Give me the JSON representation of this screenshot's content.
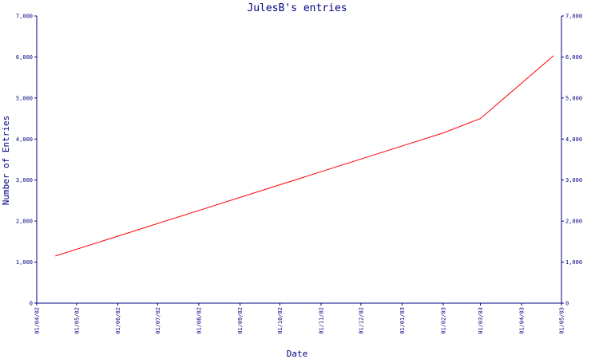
{
  "chart_data": {
    "type": "line",
    "title": "JulesB's entries",
    "xlabel": "Date",
    "ylabel": "Number of Entries",
    "x_ticks": [
      "01/04/02",
      "01/05/02",
      "01/06/02",
      "01/07/02",
      "01/08/02",
      "01/09/02",
      "01/10/02",
      "01/11/02",
      "01/12/02",
      "01/01/03",
      "01/02/03",
      "01/03/03",
      "01/04/03",
      "01/05/03"
    ],
    "y_ticks": [
      "0",
      "1,000",
      "2,000",
      "3,000",
      "4,000",
      "5,000",
      "6,000",
      "7,000"
    ],
    "ylim": [
      0,
      7000
    ],
    "xlim": [
      "01/04/02",
      "01/05/03"
    ],
    "grid": false,
    "series": [
      {
        "color": "#ff0000",
        "points": [
          {
            "x": "2002-04-15",
            "y": 1150
          },
          {
            "x": "2003-02-01",
            "y": 4150
          },
          {
            "x": "2003-03-01",
            "y": 4500
          },
          {
            "x": "2003-04-25",
            "y": 6030
          }
        ]
      }
    ]
  }
}
